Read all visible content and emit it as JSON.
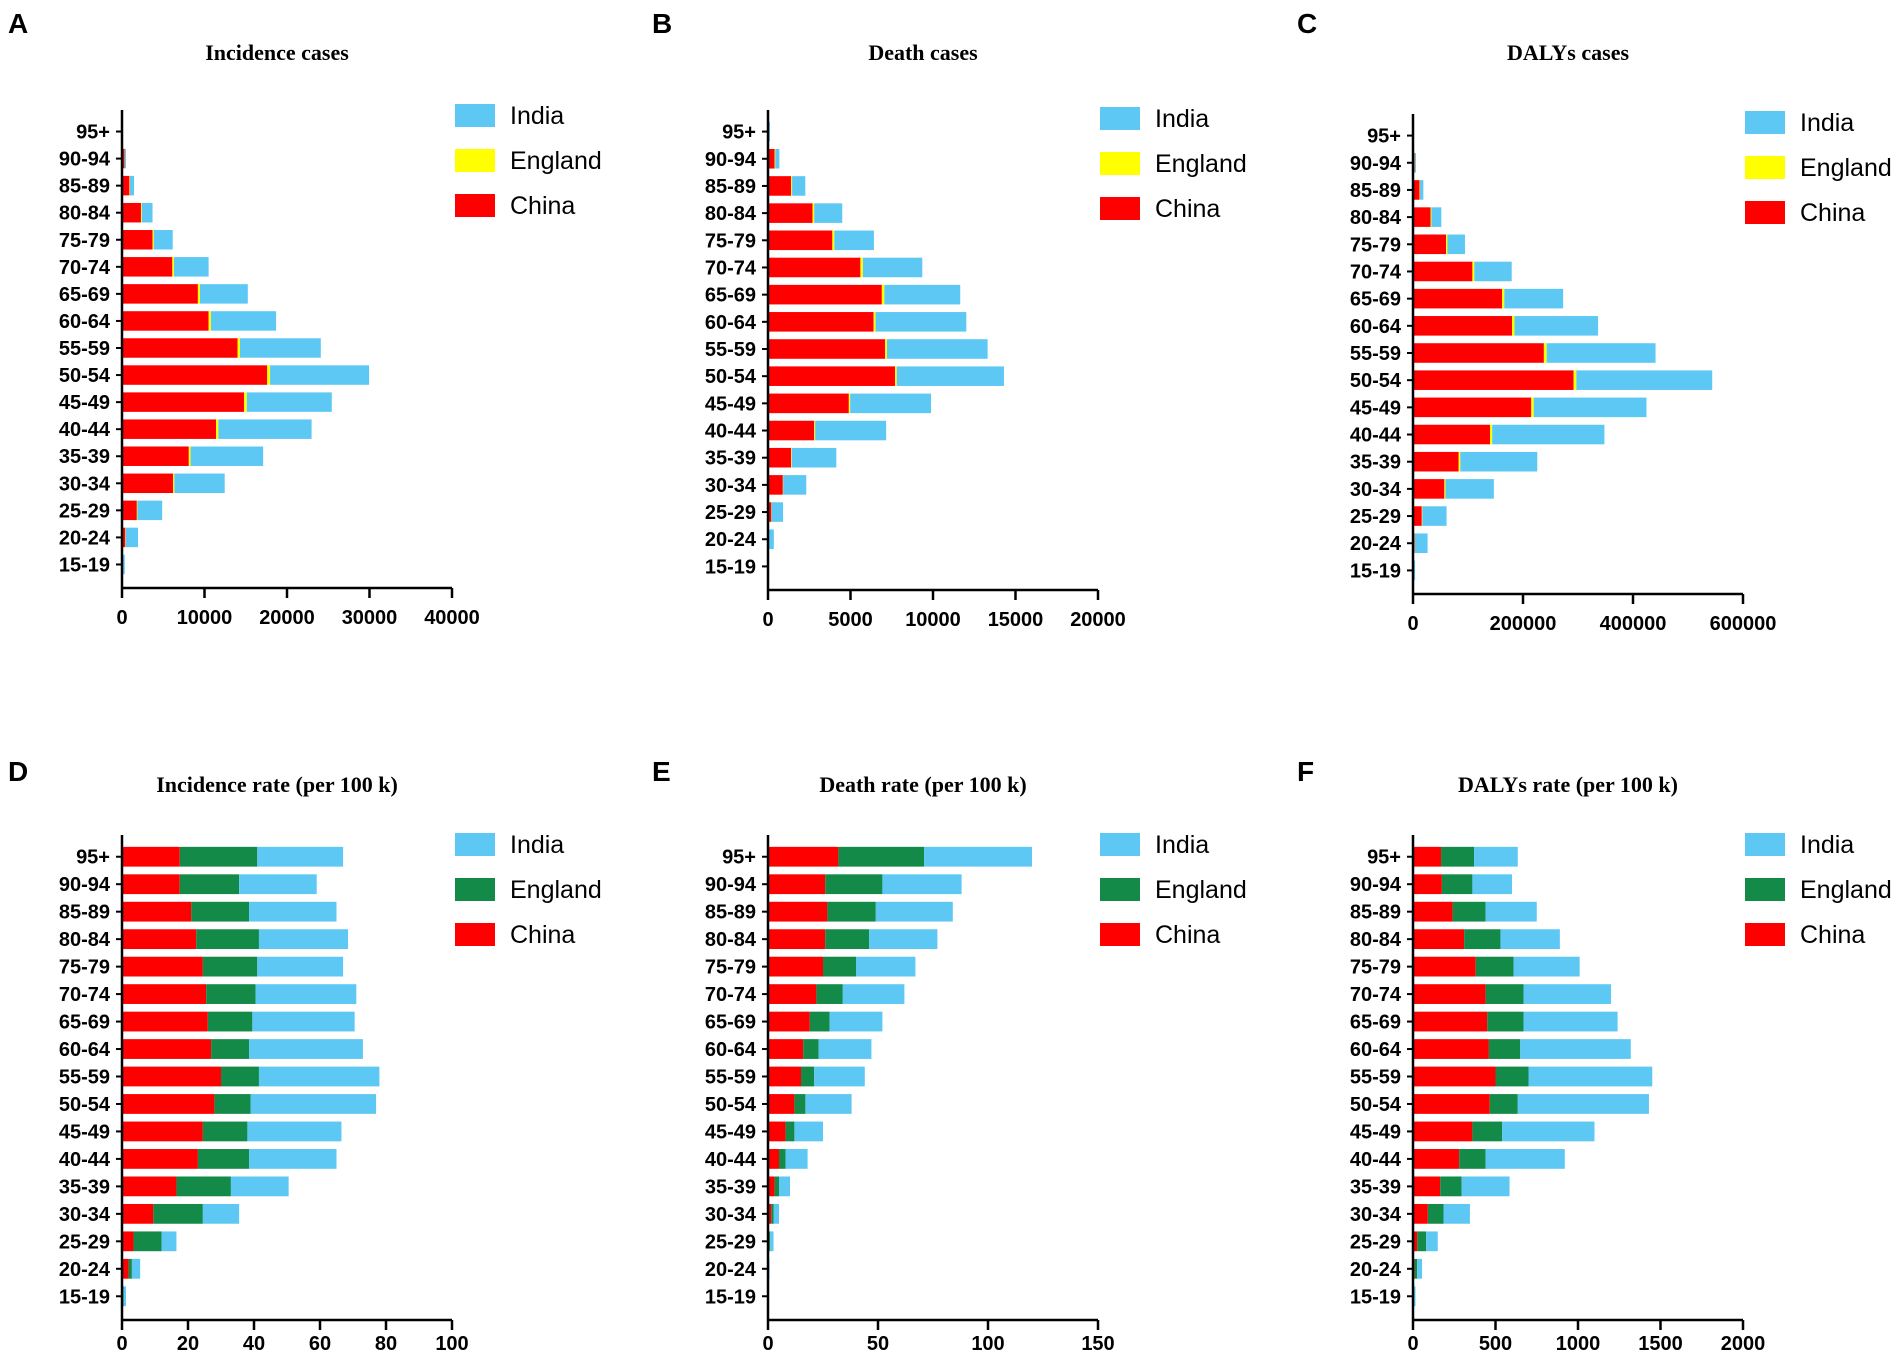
{
  "colors": {
    "India": "#5ec8f5",
    "England_top": "#ffff00",
    "England_bottom": "#138a48",
    "China": "#ff0000"
  },
  "chart_data": [
    {
      "letter": "A",
      "type": "bar",
      "stacked": true,
      "orientation": "horizontal",
      "title": "Incidence cases",
      "categories": [
        "95+",
        "90-94",
        "85-89",
        "80-84",
        "75-79",
        "70-74",
        "65-69",
        "60-64",
        "55-59",
        "50-54",
        "45-49",
        "40-44",
        "35-39",
        "30-34",
        "25-29",
        "20-24",
        "15-19"
      ],
      "series": [
        {
          "name": "China",
          "values": [
            50,
            300,
            900,
            2300,
            3700,
            6100,
            9200,
            10500,
            14000,
            17600,
            14800,
            11400,
            8100,
            6200,
            1800,
            400,
            20
          ]
        },
        {
          "name": "England",
          "values": [
            15,
            30,
            60,
            100,
            150,
            200,
            250,
            280,
            300,
            350,
            330,
            280,
            210,
            150,
            70,
            40,
            10
          ]
        },
        {
          "name": "India",
          "values": [
            30,
            150,
            500,
            1300,
            2300,
            4200,
            5800,
            7900,
            9800,
            12000,
            10300,
            11300,
            8800,
            6100,
            3000,
            1500,
            300
          ]
        }
      ],
      "xticks": [
        "0",
        "10000",
        "20000",
        "30000",
        "40000"
      ],
      "xlim": [
        0,
        40000
      ],
      "legend": [
        "India",
        "England",
        "China"
      ]
    },
    {
      "letter": "B",
      "type": "bar",
      "stacked": true,
      "orientation": "horizontal",
      "title": "Death cases",
      "categories": [
        "95+",
        "90-94",
        "85-89",
        "80-84",
        "75-79",
        "70-74",
        "65-69",
        "60-64",
        "55-59",
        "50-54",
        "45-49",
        "40-44",
        "35-39",
        "30-34",
        "25-29",
        "20-24",
        "15-19"
      ],
      "series": [
        {
          "name": "China",
          "values": [
            50,
            400,
            1400,
            2700,
            3900,
            5600,
            6900,
            6400,
            7100,
            7700,
            4900,
            2800,
            1400,
            900,
            200,
            50,
            10
          ]
        },
        {
          "name": "England",
          "values": [
            20,
            40,
            60,
            100,
            120,
            150,
            150,
            120,
            110,
            100,
            80,
            60,
            40,
            20,
            10,
            5,
            2
          ]
        },
        {
          "name": "India",
          "values": [
            50,
            250,
            800,
            1700,
            2400,
            3600,
            4600,
            5500,
            6100,
            6500,
            4900,
            4300,
            2700,
            1400,
            700,
            300,
            50
          ]
        }
      ],
      "xticks": [
        "0",
        "5000",
        "10000",
        "15000",
        "20000"
      ],
      "xlim": [
        0,
        20000
      ],
      "legend": [
        "India",
        "England",
        "China"
      ]
    },
    {
      "letter": "C",
      "type": "bar",
      "stacked": true,
      "orientation": "horizontal",
      "title": "DALYs cases",
      "categories": [
        "95+",
        "90-94",
        "85-89",
        "80-84",
        "75-79",
        "70-74",
        "65-69",
        "60-64",
        "55-59",
        "50-54",
        "45-49",
        "40-44",
        "35-39",
        "30-34",
        "25-29",
        "20-24",
        "15-19"
      ],
      "series": [
        {
          "name": "China",
          "values": [
            500,
            3000,
            12000,
            32000,
            60000,
            108000,
            162000,
            180000,
            238000,
            292000,
            215000,
            140000,
            83000,
            57000,
            16000,
            3000,
            500
          ]
        },
        {
          "name": "England",
          "values": [
            200,
            400,
            800,
            1500,
            2500,
            3500,
            4000,
            4500,
            5000,
            5000,
            4500,
            4000,
            3000,
            2000,
            1000,
            500,
            200
          ]
        },
        {
          "name": "India",
          "values": [
            500,
            2000,
            6000,
            18000,
            32000,
            68000,
            107000,
            152000,
            198000,
            247000,
            205000,
            204000,
            140000,
            88000,
            44000,
            23000,
            3000
          ]
        }
      ],
      "xticks": [
        "0",
        "200000",
        "400000",
        "600000"
      ],
      "xlim": [
        0,
        600000
      ],
      "legend": [
        "India",
        "England",
        "China"
      ]
    },
    {
      "letter": "D",
      "type": "bar",
      "stacked": true,
      "orientation": "horizontal",
      "title": "Incidence rate (per 100 k)",
      "categories": [
        "95+",
        "90-94",
        "85-89",
        "80-84",
        "75-79",
        "70-74",
        "65-69",
        "60-64",
        "55-59",
        "50-54",
        "45-49",
        "40-44",
        "35-39",
        "30-34",
        "25-29",
        "20-24",
        "15-19"
      ],
      "series": [
        {
          "name": "China",
          "values": [
            17.5,
            17.5,
            21,
            22.5,
            24.5,
            25.5,
            26,
            27,
            30,
            28,
            24.5,
            23,
            16.5,
            9.5,
            3.5,
            2,
            0.3
          ]
        },
        {
          "name": "England",
          "values": [
            23.5,
            18,
            17.5,
            19,
            16.5,
            15,
            13.5,
            11.5,
            11.5,
            11,
            13.5,
            15.5,
            16.5,
            15,
            8.5,
            1,
            0.2
          ]
        },
        {
          "name": "India",
          "values": [
            26,
            23.5,
            26.5,
            27,
            26,
            30.5,
            31,
            34.5,
            36.5,
            38,
            28.5,
            26.5,
            17.5,
            11,
            4.5,
            2.5,
            0.7
          ]
        }
      ],
      "xticks": [
        "0",
        "20",
        "40",
        "60",
        "80",
        "100"
      ],
      "xlim": [
        0,
        100
      ],
      "legend": [
        "India",
        "England",
        "China"
      ]
    },
    {
      "letter": "E",
      "type": "bar",
      "stacked": true,
      "orientation": "horizontal",
      "title": "Death rate (per 100 k)",
      "categories": [
        "95+",
        "90-94",
        "85-89",
        "80-84",
        "75-79",
        "70-74",
        "65-69",
        "60-64",
        "55-59",
        "50-54",
        "45-49",
        "40-44",
        "35-39",
        "30-34",
        "25-29",
        "20-24",
        "15-19"
      ],
      "series": [
        {
          "name": "China",
          "values": [
            32,
            26,
            27,
            26,
            25,
            22,
            19,
            16,
            15,
            12,
            8,
            5,
            3,
            1.5,
            0.5,
            0.2,
            0.05
          ]
        },
        {
          "name": "England",
          "values": [
            39,
            26,
            22,
            20,
            15,
            12,
            9,
            7,
            6,
            5,
            4,
            3,
            2,
            1,
            0.5,
            0.2,
            0.05
          ]
        },
        {
          "name": "India",
          "values": [
            49,
            36,
            35,
            31,
            27,
            28,
            24,
            24,
            23,
            21,
            13,
            10,
            5,
            2.5,
            1.5,
            0.3,
            0.1
          ]
        }
      ],
      "xticks": [
        "0",
        "50",
        "100",
        "150"
      ],
      "xlim": [
        0,
        150
      ],
      "legend": [
        "India",
        "England",
        "China"
      ]
    },
    {
      "letter": "F",
      "type": "bar",
      "stacked": true,
      "orientation": "horizontal",
      "title": "DALYs rate (per 100 k)",
      "categories": [
        "95+",
        "90-94",
        "85-89",
        "80-84",
        "75-79",
        "70-74",
        "65-69",
        "60-64",
        "55-59",
        "50-54",
        "45-49",
        "40-44",
        "35-39",
        "30-34",
        "25-29",
        "20-24",
        "15-19"
      ],
      "series": [
        {
          "name": "China",
          "values": [
            170,
            175,
            240,
            310,
            380,
            440,
            450,
            460,
            500,
            465,
            360,
            280,
            165,
            90,
            25,
            10,
            2
          ]
        },
        {
          "name": "England",
          "values": [
            200,
            185,
            200,
            220,
            230,
            230,
            220,
            190,
            200,
            170,
            180,
            160,
            130,
            95,
            55,
            15,
            3
          ]
        },
        {
          "name": "India",
          "values": [
            265,
            240,
            310,
            360,
            400,
            530,
            570,
            670,
            750,
            795,
            560,
            480,
            290,
            160,
            70,
            30,
            10
          ]
        }
      ],
      "xticks": [
        "0",
        "500",
        "1000",
        "1500",
        "2000"
      ],
      "xlim": [
        0,
        2000
      ],
      "legend": [
        "India",
        "England",
        "China"
      ]
    }
  ]
}
